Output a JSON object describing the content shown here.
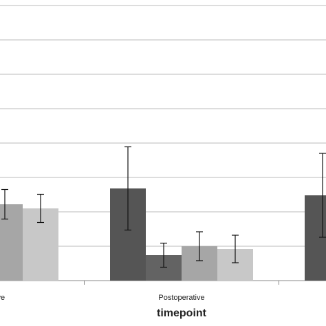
{
  "chart_data": {
    "type": "bar",
    "x_label": "timepoint",
    "categories": [
      "tive",
      "Postoperative",
      null
    ],
    "series": [
      {
        "color": "#555555",
        "values": [
          null,
          2.68,
          2.48
        ],
        "errors": [
          null,
          1.21,
          1.22
        ]
      },
      {
        "color": "#636363",
        "values": [
          null,
          0.74,
          null
        ],
        "errors": [
          null,
          0.35,
          null
        ]
      },
      {
        "color": "#a6a6a6",
        "values": [
          2.22,
          1.0,
          null
        ],
        "errors": [
          0.43,
          0.42,
          null
        ]
      },
      {
        "color": "#c8c8c8",
        "values": [
          2.1,
          0.92,
          null
        ],
        "errors": [
          0.41,
          0.4,
          null
        ]
      }
    ],
    "ylim": [
      0,
      8
    ],
    "yticks": [
      0,
      1,
      2,
      3,
      4,
      5,
      6,
      7,
      8
    ],
    "grid": true
  }
}
